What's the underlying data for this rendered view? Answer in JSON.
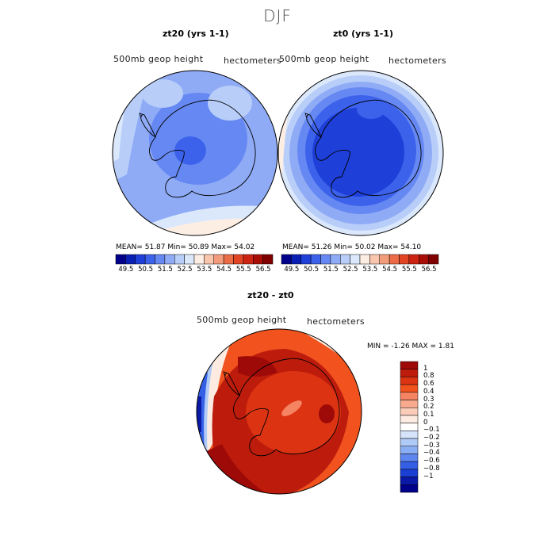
{
  "title": "DJF",
  "panels": [
    {
      "title": "zt20 (yrs 1-1)",
      "var_label": "500mb geop height",
      "units": "hectometers",
      "stats_text": "MEAN=   51.87   Min=   50.89   Max=   54.02",
      "stats": {
        "mean": 51.87,
        "min": 50.89,
        "max": 54.02
      }
    },
    {
      "title": "zt0 (yrs 1-1)",
      "var_label": "500mb geop height",
      "units": "hectometers",
      "stats_text": "MEAN=   51.26   Min=   50.02   Max=   54.10",
      "stats": {
        "mean": 51.26,
        "min": 50.02,
        "max": 54.1
      }
    },
    {
      "title": "zt20 - zt0",
      "var_label": "500mb geop height",
      "units": "hectometers",
      "stats_text": "MIN =   -1.26  MAX =    1.81",
      "stats": {
        "min": -1.26,
        "max": 1.81
      }
    }
  ],
  "colorbar_abs": {
    "ticks": [
      "49.5",
      "50.5",
      "51.5",
      "52.5",
      "53.5",
      "54.5",
      "55.5",
      "56.5"
    ],
    "colors": [
      "#00008b",
      "#0a1fb4",
      "#1e3fd8",
      "#3c62ec",
      "#6688f2",
      "#8fabf6",
      "#b8cef9",
      "#dbe8fc",
      "#fdeee4",
      "#f9c6ad",
      "#f39c7c",
      "#ec6c48",
      "#e24424",
      "#cc2410",
      "#a80e06",
      "#800000"
    ]
  },
  "colorbar_diff": {
    "labels": [
      "1",
      "0.8",
      "0.6",
      "0.4",
      "0.3",
      "0.2",
      "0.1",
      "0",
      "−0.1",
      "−0.2",
      "−0.3",
      "−0.4",
      "−0.6",
      "−0.8",
      "−1"
    ],
    "colors": [
      "#9e0a08",
      "#bd1c0c",
      "#dc3412",
      "#f1521e",
      "#f58462",
      "#f8aa8e",
      "#fbcdb9",
      "#fdebe1",
      "#ffffff",
      "#d6e4fb",
      "#b0caf7",
      "#8aaef3",
      "#5e86ee",
      "#3560e6",
      "#1a3fd3",
      "#0a1aa6",
      "#00008b"
    ]
  },
  "chart_data": [
    {
      "type": "heatmap",
      "title": "zt20 (yrs 1-1)",
      "variable": "500mb geop height",
      "units": "hectometers",
      "projection": "south polar stereographic",
      "mean": 51.87,
      "min": 50.89,
      "max": 54.02,
      "contour_levels": [
        49.5,
        50,
        50.5,
        51,
        51.5,
        52,
        52.5,
        53,
        53.5,
        54,
        54.5,
        55,
        55.5,
        56,
        56.5
      ]
    },
    {
      "type": "heatmap",
      "title": "zt0 (yrs 1-1)",
      "variable": "500mb geop height",
      "units": "hectometers",
      "projection": "south polar stereographic",
      "mean": 51.26,
      "min": 50.02,
      "max": 54.1,
      "contour_levels": [
        49.5,
        50,
        50.5,
        51,
        51.5,
        52,
        52.5,
        53,
        53.5,
        54,
        54.5,
        55,
        55.5,
        56,
        56.5
      ]
    },
    {
      "type": "heatmap",
      "title": "zt20 - zt0",
      "variable": "500mb geop height",
      "units": "hectometers",
      "projection": "south polar stereographic",
      "min": -1.26,
      "max": 1.81,
      "contour_levels": [
        -1,
        -0.8,
        -0.6,
        -0.4,
        -0.3,
        -0.2,
        -0.1,
        0,
        0.1,
        0.2,
        0.3,
        0.4,
        0.6,
        0.8,
        1
      ]
    }
  ]
}
